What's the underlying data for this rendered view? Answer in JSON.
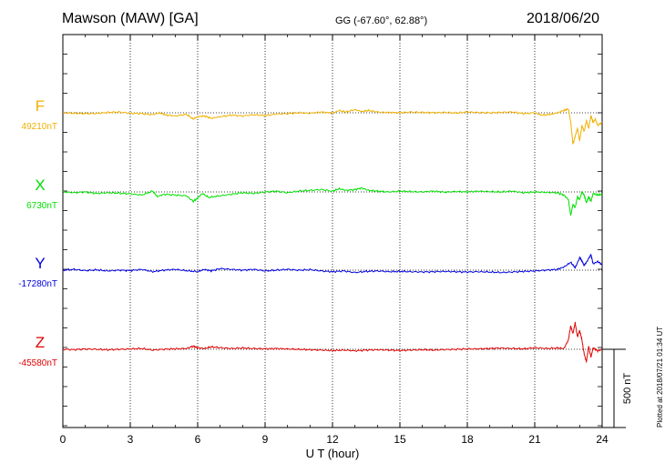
{
  "header": {
    "station": "Mawson (MAW)  [GA]",
    "coords": "GG (-67.60°,  62.88°)",
    "date": "2018/06/20",
    "plotted": "Plotted at 2018/07/21 01:34 UT"
  },
  "chart_data": {
    "type": "line",
    "xlabel": "U T (hour)",
    "xlim": [
      0,
      24
    ],
    "xticks": [
      0,
      3,
      6,
      9,
      12,
      15,
      18,
      21,
      24
    ],
    "grid": true,
    "scale_bar": {
      "label": "500 nT",
      "value_nT": 500
    },
    "series": [
      {
        "name": "F",
        "baseline_label": "49210nT",
        "baseline_nT": 49210,
        "color": "#f0b000",
        "points": [
          [
            0,
            0
          ],
          [
            0.5,
            -3
          ],
          [
            1,
            -5
          ],
          [
            1.5,
            -4
          ],
          [
            2,
            2
          ],
          [
            2.5,
            5
          ],
          [
            3,
            -3
          ],
          [
            3.5,
            -5
          ],
          [
            4,
            -12
          ],
          [
            4.3,
            0
          ],
          [
            4.6,
            -15
          ],
          [
            5,
            -20
          ],
          [
            5.5,
            -10
          ],
          [
            5.8,
            -40
          ],
          [
            6,
            -25
          ],
          [
            6.3,
            -20
          ],
          [
            6.6,
            -35
          ],
          [
            7,
            -25
          ],
          [
            7.5,
            -15
          ],
          [
            8,
            -20
          ],
          [
            8.5,
            -12
          ],
          [
            9,
            -18
          ],
          [
            9.5,
            -8
          ],
          [
            10,
            -5
          ],
          [
            10.5,
            0
          ],
          [
            11,
            -3
          ],
          [
            11.5,
            5
          ],
          [
            12,
            -2
          ],
          [
            12.3,
            15
          ],
          [
            12.6,
            5
          ],
          [
            13,
            20
          ],
          [
            13.3,
            8
          ],
          [
            13.6,
            15
          ],
          [
            14,
            5
          ],
          [
            14.5,
            2
          ],
          [
            15,
            0
          ],
          [
            15.5,
            5
          ],
          [
            16,
            2
          ],
          [
            16.5,
            0
          ],
          [
            17,
            3
          ],
          [
            17.5,
            -2
          ],
          [
            18,
            5
          ],
          [
            18.5,
            2
          ],
          [
            19,
            0
          ],
          [
            19.5,
            3
          ],
          [
            20,
            5
          ],
          [
            20.5,
            -5
          ],
          [
            21,
            0
          ],
          [
            21.3,
            -15
          ],
          [
            21.7,
            -10
          ],
          [
            22,
            0
          ],
          [
            22.3,
            15
          ],
          [
            22.5,
            25
          ],
          [
            22.6,
            -60
          ],
          [
            22.7,
            -200
          ],
          [
            22.8,
            -150
          ],
          [
            22.9,
            -100
          ],
          [
            23,
            -180
          ],
          [
            23.1,
            -80
          ],
          [
            23.2,
            -120
          ],
          [
            23.3,
            -50
          ],
          [
            23.4,
            -100
          ],
          [
            23.5,
            -20
          ],
          [
            23.6,
            -60
          ],
          [
            23.7,
            -40
          ],
          [
            23.8,
            -80
          ],
          [
            24,
            -60
          ]
        ]
      },
      {
        "name": "X",
        "baseline_label": "6730nT",
        "baseline_nT": 6730,
        "color": "#00e000",
        "points": [
          [
            0,
            0
          ],
          [
            0.5,
            -5
          ],
          [
            1,
            0
          ],
          [
            1.5,
            -10
          ],
          [
            2,
            -5
          ],
          [
            2.5,
            -8
          ],
          [
            3,
            -12
          ],
          [
            3.5,
            -20
          ],
          [
            4,
            5
          ],
          [
            4.2,
            -30
          ],
          [
            4.5,
            -15
          ],
          [
            5,
            -20
          ],
          [
            5.5,
            -25
          ],
          [
            5.8,
            -60
          ],
          [
            6,
            -40
          ],
          [
            6.2,
            -10
          ],
          [
            6.5,
            -35
          ],
          [
            7,
            -25
          ],
          [
            7.5,
            -15
          ],
          [
            8,
            -5
          ],
          [
            8.5,
            -10
          ],
          [
            9,
            0
          ],
          [
            9.5,
            5
          ],
          [
            10,
            -5
          ],
          [
            10.5,
            5
          ],
          [
            11,
            10
          ],
          [
            11.5,
            15
          ],
          [
            12,
            5
          ],
          [
            12.3,
            20
          ],
          [
            12.6,
            10
          ],
          [
            13,
            15
          ],
          [
            13.3,
            25
          ],
          [
            13.6,
            10
          ],
          [
            14,
            5
          ],
          [
            14.5,
            0
          ],
          [
            15,
            5
          ],
          [
            15.5,
            2
          ],
          [
            16,
            0
          ],
          [
            16.5,
            5
          ],
          [
            17,
            -2
          ],
          [
            17.5,
            3
          ],
          [
            18,
            0
          ],
          [
            18.5,
            5
          ],
          [
            19,
            2
          ],
          [
            19.5,
            0
          ],
          [
            20,
            5
          ],
          [
            20.5,
            -5
          ],
          [
            21,
            0
          ],
          [
            21.5,
            -3
          ],
          [
            22,
            -5
          ],
          [
            22.3,
            -20
          ],
          [
            22.5,
            -50
          ],
          [
            22.6,
            -150
          ],
          [
            22.7,
            -80
          ],
          [
            22.8,
            -100
          ],
          [
            22.9,
            -30
          ],
          [
            23,
            -50
          ],
          [
            23.1,
            0
          ],
          [
            23.2,
            -20
          ],
          [
            23.3,
            -70
          ],
          [
            23.4,
            -30
          ],
          [
            23.5,
            -60
          ],
          [
            23.6,
            -10
          ],
          [
            23.8,
            -20
          ],
          [
            24,
            -15
          ]
        ]
      },
      {
        "name": "Y",
        "baseline_label": "-17280nT",
        "baseline_nT": -17280,
        "color": "#0000e0",
        "points": [
          [
            0,
            0
          ],
          [
            0.5,
            5
          ],
          [
            1,
            -3
          ],
          [
            1.5,
            2
          ],
          [
            2,
            -5
          ],
          [
            2.5,
            0
          ],
          [
            3,
            -3
          ],
          [
            3.5,
            5
          ],
          [
            4,
            -10
          ],
          [
            4.5,
            0
          ],
          [
            5,
            5
          ],
          [
            5.5,
            -3
          ],
          [
            6,
            -10
          ],
          [
            6.3,
            5
          ],
          [
            6.6,
            -5
          ],
          [
            7,
            10
          ],
          [
            7.5,
            5
          ],
          [
            8,
            0
          ],
          [
            8.5,
            5
          ],
          [
            9,
            -5
          ],
          [
            9.5,
            0
          ],
          [
            10,
            5
          ],
          [
            10.5,
            0
          ],
          [
            11,
            3
          ],
          [
            11.5,
            -5
          ],
          [
            12,
            -10
          ],
          [
            12.5,
            -5
          ],
          [
            13,
            -15
          ],
          [
            13.5,
            -8
          ],
          [
            14,
            -5
          ],
          [
            14.5,
            -10
          ],
          [
            15,
            -8
          ],
          [
            15.5,
            -10
          ],
          [
            16,
            -12
          ],
          [
            16.5,
            -10
          ],
          [
            17,
            -8
          ],
          [
            17.5,
            -10
          ],
          [
            18,
            -12
          ],
          [
            18.5,
            -10
          ],
          [
            19,
            -12
          ],
          [
            19.5,
            -15
          ],
          [
            20,
            -12
          ],
          [
            20.5,
            -8
          ],
          [
            21,
            -5
          ],
          [
            21.5,
            0
          ],
          [
            22,
            5
          ],
          [
            22.3,
            20
          ],
          [
            22.6,
            50
          ],
          [
            22.8,
            15
          ],
          [
            23,
            80
          ],
          [
            23.1,
            60
          ],
          [
            23.2,
            30
          ],
          [
            23.3,
            50
          ],
          [
            23.5,
            100
          ],
          [
            23.6,
            40
          ],
          [
            23.8,
            55
          ],
          [
            24,
            35
          ]
        ]
      },
      {
        "name": "Z",
        "baseline_label": "-45580nT",
        "baseline_nT": -45580,
        "color": "#e00000",
        "points": [
          [
            0,
            0
          ],
          [
            0.5,
            -2
          ],
          [
            1,
            2
          ],
          [
            1.5,
            0
          ],
          [
            2,
            -3
          ],
          [
            2.5,
            0
          ],
          [
            3,
            2
          ],
          [
            3.5,
            5
          ],
          [
            4,
            -5
          ],
          [
            4.5,
            0
          ],
          [
            5,
            3
          ],
          [
            5.5,
            5
          ],
          [
            5.8,
            20
          ],
          [
            6,
            10
          ],
          [
            6.3,
            5
          ],
          [
            6.6,
            15
          ],
          [
            7,
            10
          ],
          [
            7.5,
            5
          ],
          [
            8,
            8
          ],
          [
            8.5,
            5
          ],
          [
            9,
            3
          ],
          [
            9.5,
            5
          ],
          [
            10,
            2
          ],
          [
            10.5,
            0
          ],
          [
            11,
            -3
          ],
          [
            11.5,
            -5
          ],
          [
            12,
            -8
          ],
          [
            12.5,
            -5
          ],
          [
            13,
            -10
          ],
          [
            13.5,
            -5
          ],
          [
            14,
            -3
          ],
          [
            14.5,
            -5
          ],
          [
            15,
            -8
          ],
          [
            15.5,
            -5
          ],
          [
            16,
            -3
          ],
          [
            16.5,
            -5
          ],
          [
            17,
            -2
          ],
          [
            17.5,
            0
          ],
          [
            18,
            2
          ],
          [
            18.5,
            3
          ],
          [
            19,
            5
          ],
          [
            19.5,
            8
          ],
          [
            20,
            5
          ],
          [
            20.5,
            3
          ],
          [
            21,
            10
          ],
          [
            21.5,
            5
          ],
          [
            22,
            8
          ],
          [
            22.3,
            5
          ],
          [
            22.5,
            60
          ],
          [
            22.6,
            150
          ],
          [
            22.7,
            100
          ],
          [
            22.8,
            170
          ],
          [
            22.9,
            80
          ],
          [
            23,
            120
          ],
          [
            23.1,
            60
          ],
          [
            23.2,
            -30
          ],
          [
            23.3,
            -80
          ],
          [
            23.4,
            20
          ],
          [
            23.5,
            -50
          ],
          [
            23.6,
            10
          ],
          [
            23.8,
            -10
          ],
          [
            24,
            0
          ]
        ]
      }
    ]
  }
}
